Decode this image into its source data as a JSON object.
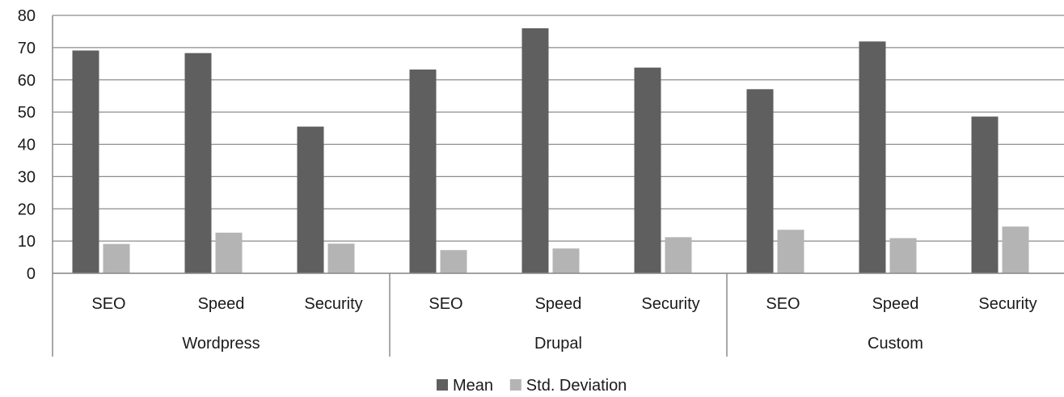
{
  "chart_data": {
    "type": "bar",
    "groups": [
      {
        "label": "Wordpress",
        "categories": [
          "SEO",
          "Speed",
          "Security"
        ]
      },
      {
        "label": "Drupal",
        "categories": [
          "SEO",
          "Speed",
          "Security"
        ]
      },
      {
        "label": "Custom",
        "categories": [
          "SEO",
          "Speed",
          "Security"
        ]
      }
    ],
    "series": [
      {
        "name": "Mean",
        "color": "#5f5f5f",
        "values": [
          69.1,
          68.3,
          45.5,
          63.2,
          76.0,
          63.8,
          57.1,
          71.9,
          48.6
        ]
      },
      {
        "name": "Std. Deviation",
        "color": "#b4b4b4",
        "values": [
          9.1,
          12.6,
          9.2,
          7.2,
          7.7,
          11.2,
          13.5,
          10.9,
          14.5
        ]
      }
    ],
    "ylim": [
      0,
      80
    ],
    "yticks": [
      "0",
      "10",
      "20",
      "30",
      "40",
      "50",
      "60",
      "70",
      "80"
    ],
    "grid": true,
    "legend_position": "bottom",
    "title": "",
    "xlabel": "",
    "ylabel": ""
  }
}
